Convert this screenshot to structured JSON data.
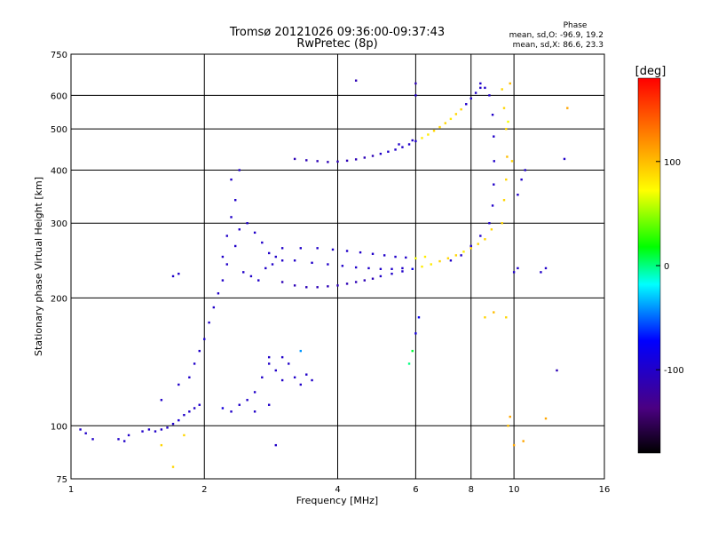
{
  "chart_data": {
    "type": "scatter",
    "title": "Tromsø 20121026 09:36:00-09:37:43",
    "subtitle": "RwPretec (8p)",
    "xlabel": "Frequency [MHz]",
    "ylabel": "Stationary phase Virtual Height [km]",
    "x_scale": "log",
    "y_scale": "log",
    "xlim": [
      1,
      16
    ],
    "ylim": [
      75,
      750
    ],
    "x_ticks": [
      1,
      2,
      4,
      6,
      8,
      10,
      16
    ],
    "y_ticks": [
      75,
      100,
      200,
      300,
      400,
      500,
      600,
      750
    ],
    "grid": true,
    "stats": {
      "heading": "Phase",
      "line_o": "mean, sd,O: -96.9, 19.2",
      "line_x": "mean, sd,X:  86.6, 23.3"
    },
    "colorbar": {
      "label": "[deg]",
      "range": [
        -180,
        180
      ],
      "ticks": [
        100,
        0,
        -100
      ],
      "colors": [
        "#000000",
        "#4b0082",
        "#0000ff",
        "#00ffff",
        "#00ff00",
        "#ffff00",
        "#ff8000",
        "#ff0000"
      ]
    },
    "points": [
      [
        1.05,
        98,
        -100
      ],
      [
        1.08,
        96,
        -100
      ],
      [
        1.12,
        93,
        -100
      ],
      [
        1.28,
        93,
        -100
      ],
      [
        1.32,
        92,
        -100
      ],
      [
        1.35,
        95,
        -100
      ],
      [
        1.45,
        97,
        -100
      ],
      [
        1.5,
        98,
        -100
      ],
      [
        1.55,
        97,
        -100
      ],
      [
        1.6,
        98,
        -100
      ],
      [
        1.65,
        99,
        -100
      ],
      [
        1.7,
        101,
        -100
      ],
      [
        1.6,
        115,
        -100
      ],
      [
        1.75,
        103,
        -95
      ],
      [
        1.8,
        106,
        -100
      ],
      [
        1.85,
        108,
        -100
      ],
      [
        1.9,
        110,
        -100
      ],
      [
        1.95,
        112,
        -100
      ],
      [
        1.75,
        125,
        -100
      ],
      [
        1.85,
        130,
        -100
      ],
      [
        1.9,
        140,
        -100
      ],
      [
        1.95,
        150,
        -100
      ],
      [
        2.0,
        160,
        -95
      ],
      [
        2.05,
        175,
        -100
      ],
      [
        2.1,
        190,
        -100
      ],
      [
        2.15,
        205,
        -100
      ],
      [
        2.2,
        220,
        -100
      ],
      [
        2.2,
        250,
        -100
      ],
      [
        2.25,
        280,
        -100
      ],
      [
        2.3,
        310,
        -100
      ],
      [
        2.35,
        340,
        -100
      ],
      [
        2.3,
        380,
        -100
      ],
      [
        2.4,
        400,
        -100
      ],
      [
        2.25,
        240,
        -100
      ],
      [
        2.35,
        265,
        -100
      ],
      [
        2.4,
        290,
        -100
      ],
      [
        2.5,
        300,
        -100
      ],
      [
        2.6,
        285,
        -100
      ],
      [
        2.7,
        270,
        -100
      ],
      [
        2.8,
        255,
        -100
      ],
      [
        2.9,
        250,
        -100
      ],
      [
        3.0,
        245,
        -100
      ],
      [
        2.45,
        230,
        -100
      ],
      [
        2.55,
        225,
        -100
      ],
      [
        2.65,
        220,
        -100
      ],
      [
        2.75,
        235,
        -100
      ],
      [
        2.85,
        240,
        -100
      ],
      [
        2.5,
        115,
        -100
      ],
      [
        2.6,
        120,
        -100
      ],
      [
        2.7,
        130,
        -100
      ],
      [
        2.8,
        140,
        -100
      ],
      [
        2.9,
        135,
        -100
      ],
      [
        3.0,
        128,
        -100
      ],
      [
        3.1,
        140,
        -100
      ],
      [
        3.2,
        130,
        -100
      ],
      [
        3.3,
        125,
        -100
      ],
      [
        3.4,
        132,
        -100
      ],
      [
        3.5,
        128,
        -100
      ],
      [
        2.2,
        110,
        -90
      ],
      [
        2.3,
        108,
        -100
      ],
      [
        2.4,
        112,
        -100
      ],
      [
        2.6,
        108,
        -100
      ],
      [
        2.8,
        112,
        -100
      ],
      [
        2.9,
        90,
        -100
      ],
      [
        1.7,
        225,
        -100
      ],
      [
        1.75,
        228,
        -100
      ],
      [
        3.0,
        218,
        -110
      ],
      [
        3.2,
        214,
        -110
      ],
      [
        3.4,
        212,
        -110
      ],
      [
        3.6,
        212,
        -110
      ],
      [
        3.8,
        213,
        -110
      ],
      [
        4.0,
        214,
        -110
      ],
      [
        4.2,
        216,
        -110
      ],
      [
        4.4,
        218,
        -110
      ],
      [
        4.6,
        220,
        -110
      ],
      [
        4.8,
        222,
        -110
      ],
      [
        5.0,
        225,
        -100
      ],
      [
        5.3,
        228,
        -100
      ],
      [
        5.6,
        231,
        -100
      ],
      [
        5.9,
        234,
        -80
      ],
      [
        6.2,
        237,
        80
      ],
      [
        6.5,
        240,
        80
      ],
      [
        6.8,
        244,
        90
      ],
      [
        7.1,
        248,
        90
      ],
      [
        7.4,
        252,
        90
      ],
      [
        7.7,
        257,
        80
      ],
      [
        8.0,
        262,
        90
      ],
      [
        8.3,
        268,
        90
      ],
      [
        8.6,
        275,
        90
      ],
      [
        8.9,
        290,
        90
      ],
      [
        7.2,
        245,
        -100
      ],
      [
        7.6,
        252,
        -100
      ],
      [
        8.0,
        265,
        -100
      ],
      [
        8.4,
        280,
        -100
      ],
      [
        8.8,
        300,
        -100
      ],
      [
        8.95,
        330,
        -100
      ],
      [
        9.0,
        370,
        -100
      ],
      [
        9.02,
        420,
        -100
      ],
      [
        9.0,
        480,
        -100
      ],
      [
        8.95,
        540,
        -100
      ],
      [
        8.8,
        600,
        -100
      ],
      [
        8.6,
        625,
        -100
      ],
      [
        8.4,
        640,
        -100
      ],
      [
        9.4,
        300,
        90
      ],
      [
        9.5,
        340,
        90
      ],
      [
        9.6,
        380,
        90
      ],
      [
        9.65,
        430,
        100
      ],
      [
        9.6,
        500,
        90
      ],
      [
        9.5,
        560,
        90
      ],
      [
        9.4,
        620,
        90
      ],
      [
        9.8,
        640,
        100
      ],
      [
        9.7,
        520,
        70
      ],
      [
        9.9,
        420,
        90
      ],
      [
        10.2,
        350,
        -100
      ],
      [
        10.4,
        380,
        -100
      ],
      [
        10.6,
        400,
        -100
      ],
      [
        3.2,
        425,
        -110
      ],
      [
        3.4,
        422,
        -110
      ],
      [
        3.6,
        420,
        -110
      ],
      [
        3.8,
        418,
        -110
      ],
      [
        4.0,
        419,
        -110
      ],
      [
        4.2,
        421,
        -110
      ],
      [
        4.4,
        424,
        -110
      ],
      [
        4.6,
        428,
        -110
      ],
      [
        4.8,
        432,
        -110
      ],
      [
        5.0,
        437,
        -100
      ],
      [
        5.2,
        442,
        -100
      ],
      [
        5.4,
        447,
        -100
      ],
      [
        5.6,
        453,
        -100
      ],
      [
        5.8,
        460,
        -100
      ],
      [
        6.0,
        468,
        -100
      ],
      [
        6.2,
        476,
        80
      ],
      [
        6.4,
        485,
        80
      ],
      [
        6.6,
        495,
        90
      ],
      [
        6.8,
        505,
        90
      ],
      [
        7.0,
        516,
        90
      ],
      [
        7.2,
        528,
        80
      ],
      [
        7.4,
        542,
        90
      ],
      [
        7.6,
        556,
        90
      ],
      [
        7.8,
        572,
        -100
      ],
      [
        8.0,
        590,
        -100
      ],
      [
        8.2,
        608,
        -100
      ],
      [
        8.4,
        625,
        -100
      ],
      [
        3.0,
        262,
        -100
      ],
      [
        3.3,
        262,
        -100
      ],
      [
        3.6,
        262,
        -100
      ],
      [
        3.9,
        260,
        -100
      ],
      [
        4.2,
        258,
        -100
      ],
      [
        4.5,
        256,
        -100
      ],
      [
        4.8,
        254,
        -100
      ],
      [
        5.1,
        252,
        -100
      ],
      [
        5.4,
        250,
        -100
      ],
      [
        5.7,
        249,
        -100
      ],
      [
        6.0,
        248,
        70
      ],
      [
        6.3,
        250,
        80
      ],
      [
        3.2,
        245,
        -100
      ],
      [
        3.5,
        242,
        -100
      ],
      [
        3.8,
        240,
        -100
      ],
      [
        4.1,
        238,
        -100
      ],
      [
        4.4,
        236,
        -100
      ],
      [
        4.7,
        235,
        -100
      ],
      [
        5.0,
        234,
        -100
      ],
      [
        5.3,
        234,
        -100
      ],
      [
        5.6,
        235,
        -100
      ],
      [
        4.4,
        650,
        -110
      ],
      [
        6.0,
        640,
        -110
      ],
      [
        6.0,
        600,
        -100
      ],
      [
        5.5,
        460,
        -100
      ],
      [
        5.9,
        470,
        -100
      ],
      [
        5.8,
        140,
        0
      ],
      [
        5.9,
        150,
        10
      ],
      [
        6.0,
        165,
        -90
      ],
      [
        6.1,
        180,
        -80
      ],
      [
        8.6,
        180,
        90
      ],
      [
        9.0,
        185,
        100
      ],
      [
        9.6,
        180,
        90
      ],
      [
        9.8,
        105,
        110
      ],
      [
        10.0,
        90,
        110
      ],
      [
        10.5,
        92,
        110
      ],
      [
        9.7,
        100,
        100
      ],
      [
        11.8,
        104,
        110
      ],
      [
        12.5,
        135,
        -110
      ],
      [
        13.0,
        425,
        -100
      ],
      [
        13.2,
        560,
        110
      ],
      [
        11.5,
        230,
        -100
      ],
      [
        11.8,
        235,
        -100
      ],
      [
        10.0,
        230,
        -100
      ],
      [
        10.2,
        235,
        -100
      ],
      [
        3.3,
        150,
        -40
      ],
      [
        3.0,
        145,
        -100
      ],
      [
        2.8,
        145,
        -100
      ],
      [
        1.8,
        95,
        90
      ],
      [
        1.7,
        80,
        90
      ],
      [
        1.6,
        90,
        90
      ]
    ]
  }
}
